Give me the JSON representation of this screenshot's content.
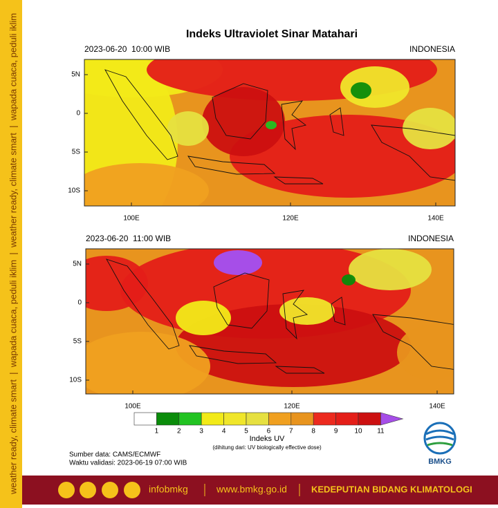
{
  "side_text": "weather ready, climate smart  |  wapada cuaca, peduli iklim  |  weather ready, climate smart  |  wapada cuaca, peduli iklim",
  "title": "Indeks Ultraviolet Sinar Matahari",
  "maps": [
    {
      "time": "2023-06-20  10:00 WIB",
      "region": "INDONESIA",
      "lat_labels": [
        "5N",
        "0",
        "5S",
        "10S"
      ],
      "lon_labels": [
        "100E",
        "120E",
        "140E"
      ]
    },
    {
      "time": "2023-06-20  11:00 WIB",
      "region": "INDONESIA",
      "lat_labels": [
        "5N",
        "0",
        "5S",
        "10S"
      ],
      "lon_labels": [
        "100E",
        "120E",
        "140E"
      ]
    }
  ],
  "colorbar": {
    "labels": [
      1,
      2,
      3,
      4,
      5,
      6,
      7,
      8,
      9,
      10,
      11
    ],
    "colors": [
      "#ffffff",
      "#0a8c0a",
      "#22c322",
      "#f2ea18",
      "#f0e62a",
      "#e6e040",
      "#f0a020",
      "#e8941e",
      "#ec2a1e",
      "#e41e18",
      "#cc1010"
    ],
    "over_color": "#a64ee8",
    "title": "Indeks UV",
    "subtitle": "(dihitung dari: UV biologically effective dose)"
  },
  "source": "Sumber data: CAMS/ECMWF",
  "validity": "Waktu validasi: 2023-06-19 07:00 WIB",
  "logo": "BMKG",
  "footer": {
    "handle": "infobmkg",
    "website": "www.bmkg.go.id",
    "office": "KEDEPUTIAN BIDANG KLIMATOLOGI"
  }
}
